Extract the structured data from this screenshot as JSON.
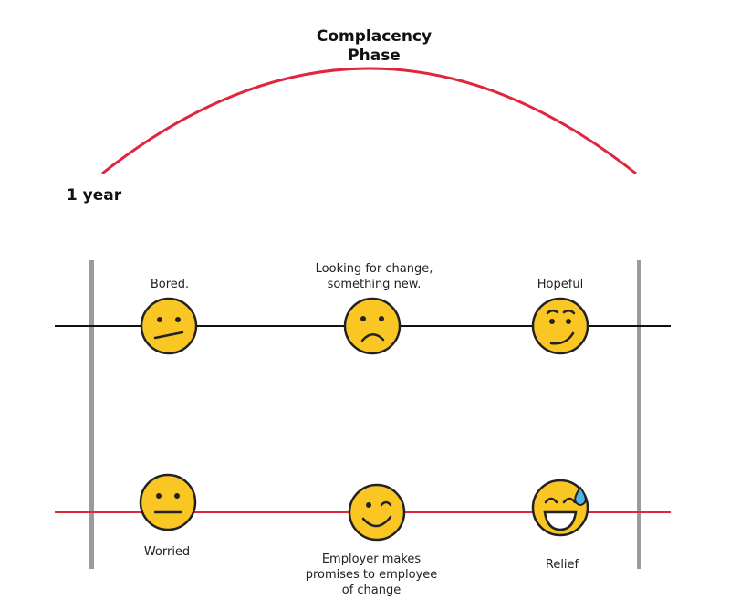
{
  "title": {
    "lines": [
      "Complacency",
      "Phase"
    ]
  },
  "period": "1 year",
  "top_row": [
    {
      "lines": [
        "Bored."
      ]
    },
    {
      "lines": [
        "Looking for change,",
        "something new."
      ]
    },
    {
      "lines": [
        "Hopeful"
      ]
    }
  ],
  "bottom_row": [
    {
      "lines": [
        "Worried"
      ]
    },
    {
      "lines": [
        "Employer makes",
        "promises to employee",
        "of change"
      ]
    },
    {
      "lines": [
        "Relief"
      ]
    }
  ]
}
